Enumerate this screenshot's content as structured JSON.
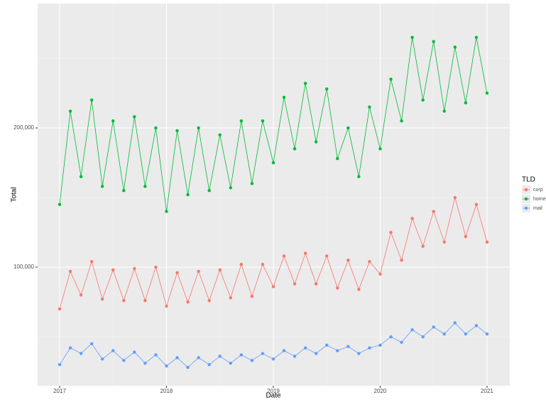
{
  "chart_data": {
    "type": "line",
    "x_label": "Date",
    "y_label": "Total",
    "legend_title": "TLD",
    "legend": "right",
    "grid": true,
    "x": [
      2017.0,
      2017.1,
      2017.2,
      2017.3,
      2017.4,
      2017.5,
      2017.6,
      2017.7,
      2017.8,
      2017.9,
      2018.0,
      2018.1,
      2018.2,
      2018.3,
      2018.4,
      2018.5,
      2018.6,
      2018.7,
      2018.8,
      2018.9,
      2019.0,
      2019.1,
      2019.2,
      2019.3,
      2019.4,
      2019.5,
      2019.6,
      2019.7,
      2019.8,
      2019.9,
      2020.0,
      2020.1,
      2020.2,
      2020.3,
      2020.4,
      2020.5,
      2020.6,
      2020.7,
      2020.8,
      2020.9,
      2021.0
    ],
    "series": [
      {
        "name": "corp",
        "color": "#F8766D",
        "values": [
          70000,
          97000,
          80000,
          104000,
          77000,
          98000,
          76000,
          99000,
          76000,
          100000,
          72000,
          96000,
          75000,
          97000,
          76000,
          98000,
          78000,
          102000,
          79000,
          102000,
          86000,
          108000,
          88000,
          110000,
          88000,
          108000,
          85000,
          105000,
          84000,
          104000,
          95000,
          125000,
          105000,
          135000,
          115000,
          140000,
          118000,
          150000,
          122000,
          145000,
          118000
        ]
      },
      {
        "name": "home",
        "color": "#00BA38",
        "values": [
          145000,
          212000,
          165000,
          220000,
          158000,
          205000,
          155000,
          208000,
          158000,
          200000,
          140000,
          198000,
          152000,
          200000,
          155000,
          195000,
          157000,
          205000,
          160000,
          205000,
          175000,
          222000,
          185000,
          232000,
          190000,
          228000,
          178000,
          200000,
          165000,
          215000,
          185000,
          235000,
          205000,
          265000,
          220000,
          262000,
          212000,
          258000,
          218000,
          265000,
          225000
        ]
      },
      {
        "name": "mail",
        "color": "#619CFF",
        "values": [
          30000,
          42000,
          38000,
          45000,
          34000,
          40000,
          33000,
          39000,
          31000,
          37000,
          29000,
          35000,
          28000,
          35000,
          30000,
          36000,
          31000,
          37000,
          33000,
          38000,
          34000,
          40000,
          36000,
          42000,
          38000,
          44000,
          40000,
          43000,
          38000,
          42000,
          44000,
          50000,
          46000,
          55000,
          50000,
          57000,
          52000,
          60000,
          52000,
          58000,
          52000
        ]
      }
    ],
    "xlim": [
      2016.794,
      2021.213
    ],
    "xticks": [
      2017,
      2018,
      2019,
      2020,
      2021
    ],
    "ylim": [
      14800,
      289300
    ],
    "yticks": [
      {
        "value": 100000,
        "label": "100,000"
      },
      {
        "value": 200000,
        "label": "200,000"
      }
    ]
  }
}
